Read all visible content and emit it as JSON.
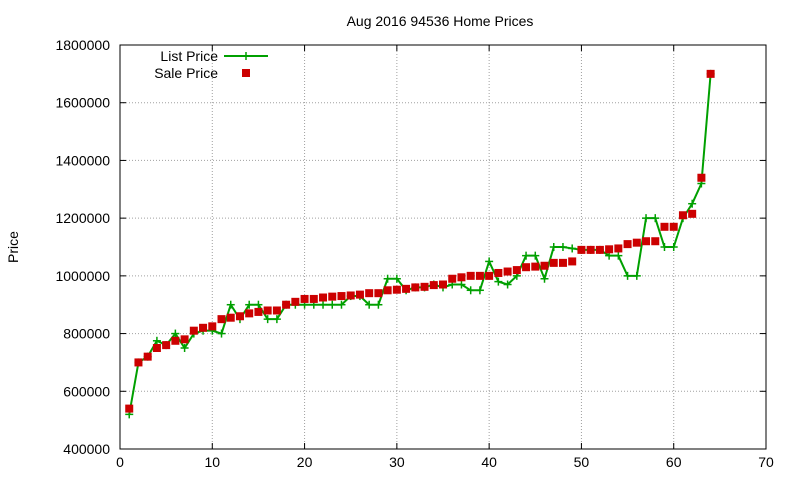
{
  "chart_data": {
    "type": "line",
    "title": "Aug 2016 94536 Home Prices",
    "xlabel": "",
    "ylabel": "Price",
    "xlim": [
      0,
      70
    ],
    "ylim": [
      400000,
      1800000
    ],
    "x_ticks": [
      0,
      10,
      20,
      30,
      40,
      50,
      60,
      70
    ],
    "y_ticks": [
      400000,
      600000,
      800000,
      1000000,
      1200000,
      1400000,
      1600000,
      1800000
    ],
    "grid": true,
    "legend_position": "top-left",
    "series": [
      {
        "name": "List Price",
        "style": "line-with-plus-markers",
        "color": "#00a000",
        "x": [
          1,
          2,
          3,
          4,
          5,
          6,
          7,
          8,
          9,
          10,
          11,
          12,
          13,
          14,
          15,
          16,
          17,
          18,
          19,
          20,
          21,
          22,
          23,
          24,
          25,
          26,
          27,
          28,
          29,
          30,
          31,
          32,
          33,
          34,
          35,
          36,
          37,
          38,
          39,
          40,
          41,
          42,
          43,
          44,
          45,
          46,
          47,
          48,
          49,
          50,
          51,
          52,
          53,
          54,
          55,
          56,
          57,
          58,
          59,
          60,
          61,
          62,
          63,
          64
        ],
        "values": [
          520000,
          700000,
          720000,
          775000,
          760000,
          800000,
          750000,
          800000,
          810000,
          810000,
          800000,
          900000,
          850000,
          900000,
          900000,
          850000,
          850000,
          900000,
          900000,
          900000,
          900000,
          900000,
          900000,
          900000,
          930000,
          930000,
          900000,
          900000,
          990000,
          990000,
          950000,
          960000,
          960000,
          970000,
          960000,
          970000,
          970000,
          950000,
          950000,
          1050000,
          980000,
          970000,
          1000000,
          1070000,
          1070000,
          990000,
          1100000,
          1100000,
          1095000,
          1090000,
          1090000,
          1090000,
          1070000,
          1070000,
          1000000,
          1000000,
          1200000,
          1200000,
          1100000,
          1100000,
          1200000,
          1250000,
          1320000,
          1700000
        ]
      },
      {
        "name": "Sale Price",
        "style": "square-markers",
        "color": "#cc0000",
        "x": [
          1,
          2,
          3,
          4,
          5,
          6,
          7,
          8,
          9,
          10,
          11,
          12,
          13,
          14,
          15,
          16,
          17,
          18,
          19,
          20,
          21,
          22,
          23,
          24,
          25,
          26,
          27,
          28,
          29,
          30,
          31,
          32,
          33,
          34,
          35,
          36,
          37,
          38,
          39,
          40,
          41,
          42,
          43,
          44,
          45,
          46,
          47,
          48,
          49,
          50,
          51,
          52,
          53,
          54,
          55,
          56,
          57,
          58,
          59,
          60,
          61,
          62,
          63,
          64
        ],
        "values": [
          540000,
          700000,
          720000,
          750000,
          760000,
          775000,
          780000,
          810000,
          820000,
          825000,
          850000,
          855000,
          860000,
          870000,
          875000,
          880000,
          880000,
          900000,
          910000,
          920000,
          920000,
          925000,
          928000,
          930000,
          932000,
          935000,
          940000,
          940000,
          950000,
          952000,
          955000,
          960000,
          962000,
          968000,
          970000,
          990000,
          995000,
          1000000,
          1000000,
          1000000,
          1010000,
          1015000,
          1020000,
          1030000,
          1032000,
          1035000,
          1045000,
          1045000,
          1050000,
          1090000,
          1090000,
          1090000,
          1092000,
          1095000,
          1110000,
          1115000,
          1120000,
          1120000,
          1170000,
          1170000,
          1210000,
          1215000,
          1340000,
          1700000
        ]
      }
    ]
  }
}
